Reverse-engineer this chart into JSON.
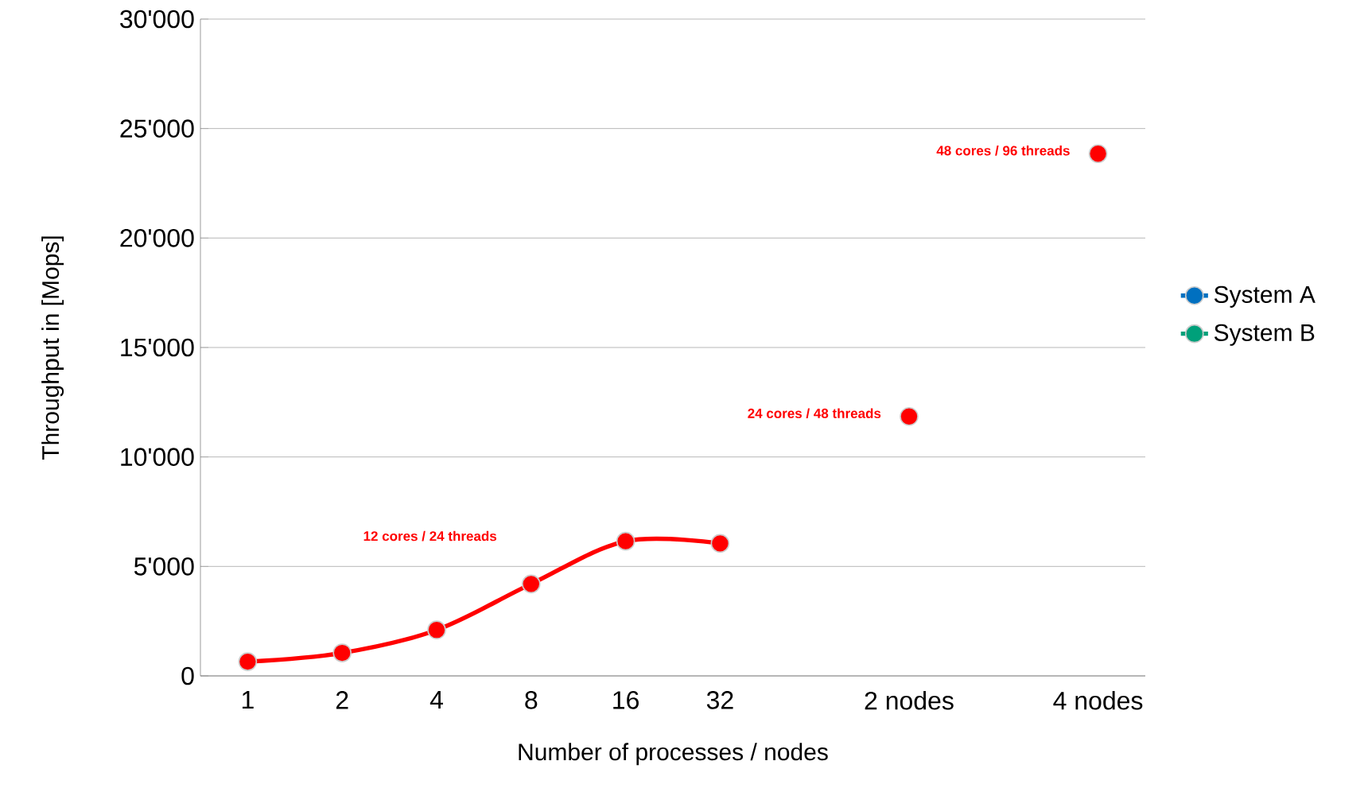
{
  "chart_data": {
    "type": "line",
    "xlabel": "Number of processes / nodes",
    "ylabel": "Throughput in [Mops]",
    "categories": [
      "1",
      "2",
      "4",
      "8",
      "16",
      "32",
      null,
      "2 nodes",
      null,
      "4 nodes"
    ],
    "series": [
      {
        "color": "#ff0000",
        "values": [
          650,
          1050,
          2100,
          4200,
          6150,
          6050,
          null,
          11850,
          null,
          23850
        ]
      },
      {
        "name": "System A",
        "color": "#0070c0",
        "values": [
          null,
          null,
          null,
          null,
          null,
          null,
          null,
          null,
          null,
          null
        ]
      },
      {
        "name": "System B",
        "color": "#00a07a",
        "values": [
          null,
          null,
          null,
          null,
          null,
          null,
          null,
          null,
          null,
          null
        ]
      }
    ],
    "ylim": [
      0,
      30000
    ],
    "yticks": [
      0,
      {
        "value": 5000,
        "label": "5'000"
      },
      {
        "value": 10000,
        "label": "10'000"
      },
      {
        "value": 15000,
        "label": "15'000"
      },
      {
        "value": 20000,
        "label": "20'000"
      },
      {
        "value": 25000,
        "label": "25'000"
      },
      {
        "value": 30000,
        "label": "30'000"
      }
    ],
    "grid": "y",
    "legend": "right",
    "marker": "circle",
    "line_style": "solid",
    "annotations": [
      "12 cores / 24 threads",
      {
        "text": "24 cores / 48 threads",
        "x": "2 nodes",
        "y": 11850
      },
      {
        "text": "48 cores / 96 threads",
        "x": "4 nodes",
        "y": 23850
      }
    ]
  }
}
